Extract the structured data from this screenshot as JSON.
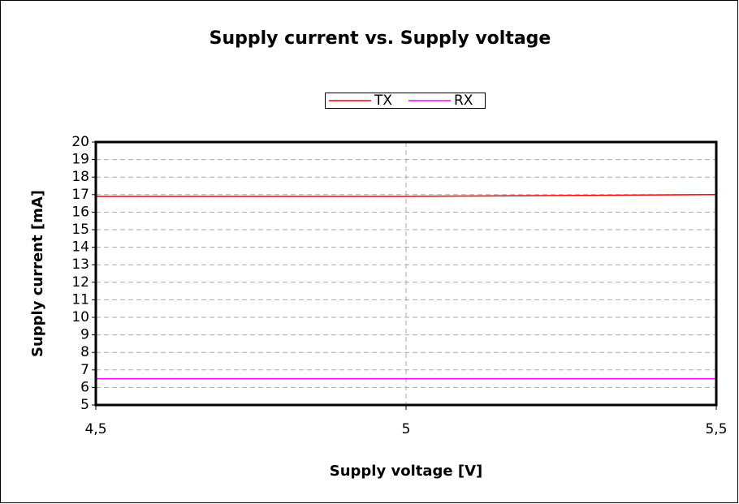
{
  "chart_data": {
    "type": "line",
    "title": "Supply current vs. Supply voltage",
    "x_label": "Supply voltage  [V]",
    "y_label": "Supply current [mA]",
    "x": [
      4.5,
      5,
      5.5
    ],
    "series": [
      {
        "name": "TX",
        "color": "#ff0000",
        "values": [
          16.9,
          16.9,
          17.0
        ]
      },
      {
        "name": "RX",
        "color": "#ff00ff",
        "values": [
          6.5,
          6.5,
          6.5
        ]
      }
    ],
    "xlim": [
      4.5,
      5.5
    ],
    "xticks": [
      {
        "value": 4.5,
        "label": "4,5"
      },
      5,
      {
        "value": 5.5,
        "label": "5,5"
      }
    ],
    "ylim": [
      5,
      20
    ],
    "yticks": [
      5,
      6,
      7,
      8,
      9,
      10,
      11,
      12,
      13,
      14,
      15,
      16,
      17,
      18,
      19,
      20
    ],
    "grid": true,
    "legend": "top"
  }
}
